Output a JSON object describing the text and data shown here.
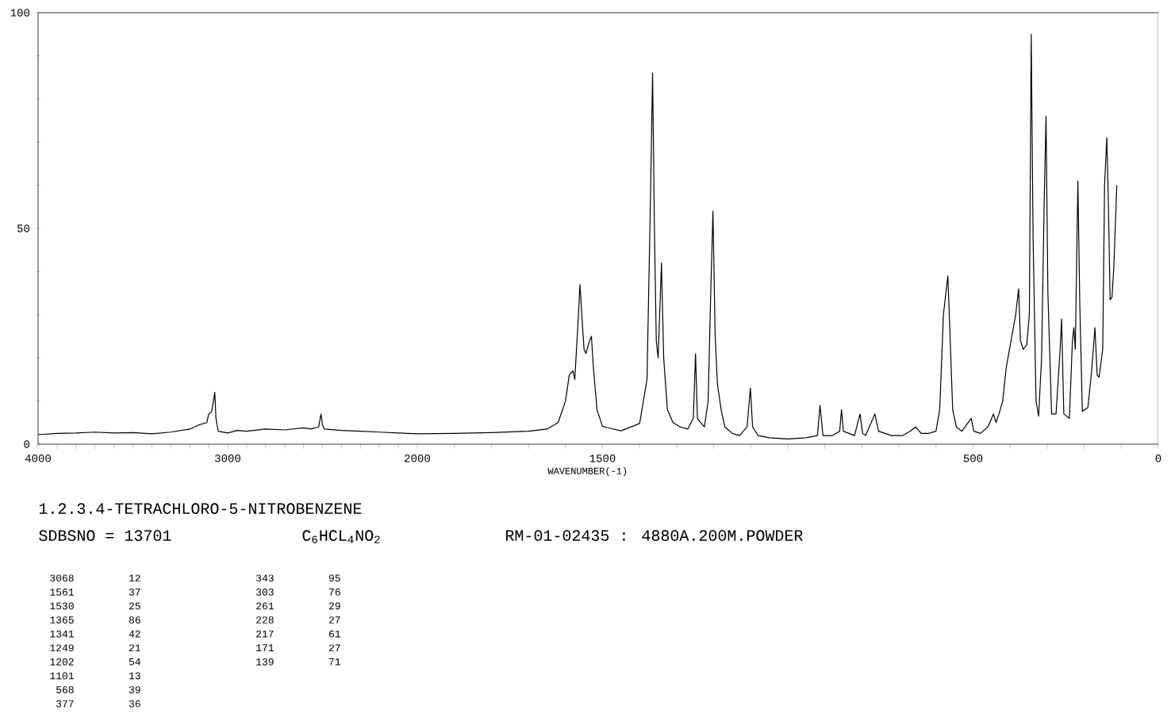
{
  "chart_data": [
    {
      "type": "line",
      "title": "1.2.3.4-TETRACHLORO-5-NITROBENZENE",
      "color": "#000000",
      "annotations": [
        "SDBSNO = 13701",
        "C$_{6}$HCL$_{4}$NO$_{2}$",
        "RM-01-02435 : 4880A.200M.POWDER",
        "3068",
        "12",
        "1561",
        "37",
        "1530",
        "25",
        "1365",
        "86",
        "1341",
        "42",
        "1249",
        "21",
        "1202",
        "54",
        "1101",
        "13",
        "568",
        "39",
        "377",
        "36",
        "343",
        "95",
        "303",
        "76",
        "261",
        "29",
        "228",
        "27",
        "217",
        "61",
        "171",
        "27",
        "139",
        "71"
      ],
      "x": [
        4000,
        3900,
        3800,
        3700,
        3600,
        3500,
        3400,
        3300,
        3200,
        3150,
        3110,
        3100,
        3085,
        3075,
        3068,
        3062,
        3050,
        3000,
        2950,
        2900,
        2800,
        2700,
        2600,
        2560,
        2520,
        2508,
        2500,
        2490,
        2400,
        2300,
        2200,
        2100,
        2000
      ],
      "values": [
        2.2,
        2.5,
        2.6,
        2.8,
        2.6,
        2.7,
        2.4,
        2.8,
        3.5,
        4.5,
        5,
        7,
        7.5,
        10,
        12,
        6,
        3,
        2.6,
        3.2,
        3,
        3.5,
        3.3,
        3.8,
        3.5,
        4,
        7,
        4.5,
        3.5,
        3.2,
        3,
        2.8,
        2.6,
        2.4
      ],
      "xlim": [
        4000,
        2000
      ],
      "ylim": [
        0,
        100
      ],
      "xticks": [
        4000,
        {
          "value": 3900,
          "label": null
        },
        {
          "value": 3800,
          "label": null
        },
        {
          "value": 3700,
          "label": null
        },
        {
          "value": 3600,
          "label": null
        },
        {
          "value": 3500,
          "label": null
        },
        {
          "value": 3400,
          "label": null
        },
        {
          "value": 3300,
          "label": null
        },
        {
          "value": 3200,
          "label": null
        },
        {
          "value": 3100,
          "label": null
        },
        3000,
        {
          "value": 2900,
          "label": null
        },
        {
          "value": 2800,
          "label": null
        },
        {
          "value": 2700,
          "label": null
        },
        {
          "value": 2600,
          "label": null
        },
        {
          "value": 2500,
          "label": null
        },
        {
          "value": 2400,
          "label": null
        },
        {
          "value": 2300,
          "label": null
        },
        {
          "value": 2200,
          "label": null
        },
        {
          "value": 2100,
          "label": null
        },
        2000
      ],
      "yticks": [
        0,
        {
          "value": 10,
          "label": null
        },
        {
          "value": 20,
          "label": null
        },
        {
          "value": 30,
          "label": null
        },
        {
          "value": 40,
          "label": null
        },
        50,
        {
          "value": 60,
          "label": null
        },
        {
          "value": 70,
          "label": null
        },
        {
          "value": 80,
          "label": null
        },
        {
          "value": 90,
          "label": null
        },
        100
      ]
    },
    {
      "type": "line",
      "xlabel": "WAVENUMBER(-1)",
      "color": "#000000",
      "tick_labels": "x",
      "x": [
        2000,
        1900,
        1800,
        1700,
        1650,
        1620,
        1600,
        1590,
        1580,
        1575,
        1565,
        1561,
        1556,
        1550,
        1545,
        1535,
        1530,
        1525,
        1515,
        1500,
        1450,
        1400,
        1380,
        1370,
        1365,
        1360,
        1355,
        1350,
        1341,
        1335,
        1325,
        1310,
        1290,
        1270,
        1255,
        1249,
        1244,
        1235,
        1225,
        1215,
        1208,
        1202,
        1196,
        1190,
        1180,
        1170,
        1150,
        1130,
        1110,
        1101,
        1095,
        1080,
        1050,
        1000,
        950,
        920,
        913,
        905,
        880,
        860,
        855,
        850,
        820,
        805,
        798,
        790,
        765,
        755,
        720,
        690,
        670,
        655,
        640,
        620,
        600,
        590,
        580,
        568,
        562,
        555,
        545,
        530,
        505,
        498,
        480,
        460,
        445,
        438,
        430,
        420,
        410,
        385,
        377,
        372,
        365,
        355,
        348,
        343,
        338,
        330,
        323,
        315,
        308,
        303,
        298,
        288,
        276,
        265,
        261,
        255,
        240,
        232,
        228,
        224,
        217,
        212,
        205,
        190,
        180,
        171,
        165,
        160,
        150,
        145,
        139,
        135,
        130,
        125,
        120,
        112
      ],
      "values": [
        2.4,
        2.5,
        2.7,
        3,
        3.5,
        5,
        10,
        16,
        17,
        15,
        30,
        37,
        30,
        22,
        21,
        24,
        25,
        18,
        8,
        4.1,
        3.1,
        4.8,
        15,
        60,
        86,
        50,
        24,
        20,
        42,
        20,
        8,
        5,
        4,
        3.5,
        6,
        21,
        6,
        5,
        4,
        10,
        35,
        54,
        25,
        14,
        8,
        4,
        2.5,
        2,
        4,
        13,
        4,
        2,
        1.5,
        1.2,
        1.5,
        2,
        9,
        2,
        2,
        3,
        8,
        3,
        2,
        7,
        2.5,
        2,
        7,
        3,
        2,
        2,
        3,
        4,
        2.5,
        2.5,
        3,
        8,
        30,
        39,
        25,
        8,
        4,
        3,
        6,
        3,
        2.5,
        4,
        7,
        5,
        7,
        10,
        18,
        30,
        36,
        24,
        22,
        23,
        30,
        95,
        48,
        10,
        6.5,
        20,
        56,
        76,
        35,
        7,
        7,
        22,
        29,
        7,
        6,
        23.6,
        27,
        22,
        61,
        33,
        7.6,
        8.5,
        17,
        27,
        16,
        15.5,
        22,
        60,
        71,
        57,
        33.5,
        34,
        41,
        60
      ],
      "xlim": [
        2000,
        0
      ],
      "ylim": [
        0,
        100
      ],
      "xticks": [
        {
          "value": 1900,
          "label": null
        },
        {
          "value": 1800,
          "label": null
        },
        {
          "value": 1700,
          "label": null
        },
        {
          "value": 1600,
          "label": null
        },
        1500,
        {
          "value": 1400,
          "label": null
        },
        {
          "value": 1300,
          "label": null
        },
        {
          "value": 1200,
          "label": null
        },
        {
          "value": 1100,
          "label": null
        },
        {
          "value": 1000,
          "label": null
        },
        {
          "value": 900,
          "label": null
        },
        {
          "value": 800,
          "label": null
        },
        {
          "value": 700,
          "label": null
        },
        {
          "value": 600,
          "label": null
        },
        500,
        {
          "value": 400,
          "label": null
        },
        {
          "value": 300,
          "label": null
        },
        {
          "value": 200,
          "label": null
        },
        {
          "value": 100,
          "label": null
        },
        0
      ]
    }
  ]
}
